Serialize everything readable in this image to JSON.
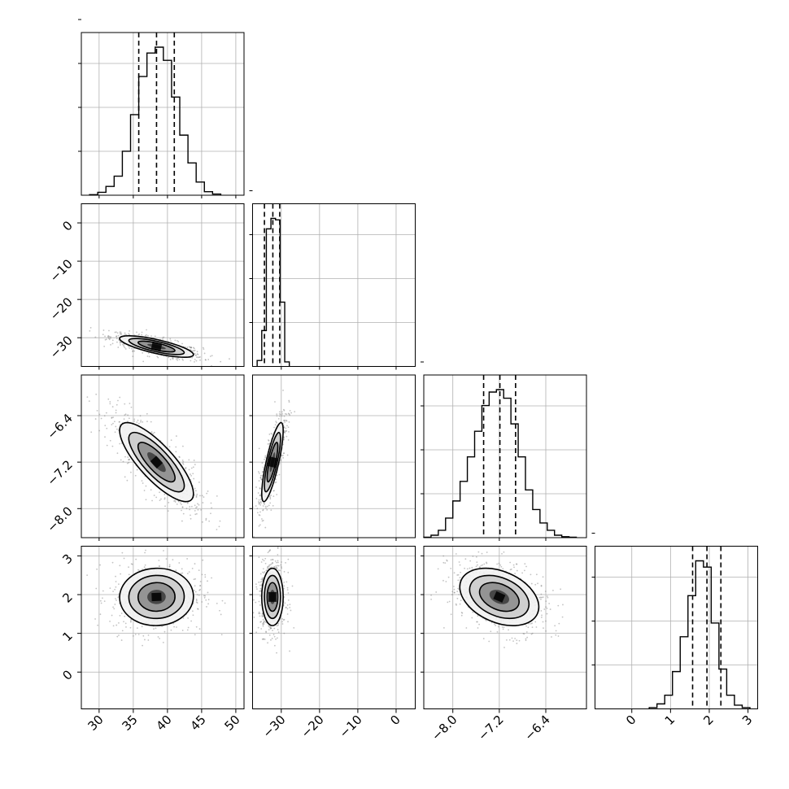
{
  "chart_data": {
    "type": "corner",
    "grid": true,
    "colors": {
      "line": "#000000",
      "grid": "#b0b0b0",
      "frame": "#000000",
      "background": "#ffffff",
      "points": "#7a7a7a"
    },
    "parameters": [
      {
        "range": [
          27.4,
          51.2
        ],
        "ticks": [
          "30",
          "35",
          "40",
          "45",
          "50"
        ],
        "tick_values": [
          30,
          35,
          40,
          45,
          50
        ]
      },
      {
        "range": [
          -37.5,
          5.0
        ],
        "ticks": [
          "−30",
          "−20",
          "−10",
          "0"
        ],
        "tick_values": [
          -30,
          -20,
          -10,
          0
        ]
      },
      {
        "range": [
          -8.5,
          -5.7
        ],
        "ticks": [
          "−8.0",
          "−7.2",
          "−6.4"
        ],
        "tick_values": [
          -8.0,
          -7.2,
          -6.4
        ]
      },
      {
        "range": [
          -0.95,
          3.25
        ],
        "ticks": [
          "0",
          "1",
          "2",
          "3"
        ],
        "tick_values": [
          0,
          1,
          2,
          3
        ]
      }
    ],
    "histograms": [
      {
        "parameter": 0,
        "bin_edges": [
          28.6,
          29.8,
          31.0,
          32.2,
          33.4,
          34.6,
          35.8,
          37.0,
          38.2,
          39.4,
          40.6,
          41.8,
          43.0,
          44.2,
          45.4,
          46.6,
          47.8
        ],
        "counts": [
          2,
          10,
          30,
          65,
          150,
          275,
          405,
          485,
          505,
          460,
          335,
          205,
          110,
          45,
          12,
          4
        ],
        "quantiles": [
          35.8,
          38.4,
          41.0
        ]
      },
      {
        "parameter": 1,
        "bin_edges": [
          -36.3,
          -35.1,
          -33.9,
          -32.7,
          -31.5,
          -30.3,
          -29.1,
          -27.9
        ],
        "counts": [
          20,
          120,
          460,
          495,
          490,
          215,
          15
        ],
        "quantiles": [
          -34.4,
          -32.2,
          -30.4
        ]
      },
      {
        "parameter": 2,
        "bin_edges": [
          -8.5,
          -8.375,
          -8.25,
          -8.125,
          -8.0,
          -7.875,
          -7.75,
          -7.625,
          -7.5,
          -7.375,
          -7.25,
          -7.125,
          -7.0,
          -6.875,
          -6.75,
          -6.625,
          -6.5,
          -6.375,
          -6.25,
          -6.125,
          -6.0,
          -5.875
        ],
        "counts": [
          2,
          10,
          30,
          80,
          150,
          230,
          330,
          435,
          540,
          595,
          605,
          570,
          465,
          330,
          195,
          115,
          60,
          30,
          10,
          4,
          2
        ],
        "quantiles": [
          -7.47,
          -7.19,
          -6.92
        ]
      },
      {
        "parameter": 3,
        "bin_edges": [
          0.45,
          0.65,
          0.85,
          1.05,
          1.25,
          1.45,
          1.65,
          1.85,
          2.05,
          2.25,
          2.45,
          2.65,
          2.85,
          3.05
        ],
        "counts": [
          5,
          20,
          55,
          150,
          290,
          455,
          595,
          570,
          345,
          160,
          55,
          15,
          5
        ],
        "quantiles": [
          1.57,
          1.94,
          2.3
        ]
      }
    ],
    "pair_densities": [
      {
        "x": 0,
        "y": 1,
        "mean": [
          38.4,
          -32.3
        ],
        "sd": [
          2.7,
          1.4
        ],
        "corr": -0.75
      },
      {
        "x": 0,
        "y": 2,
        "mean": [
          38.4,
          -7.2
        ],
        "sd": [
          2.7,
          0.34
        ],
        "corr": -0.8
      },
      {
        "x": 0,
        "y": 3,
        "mean": [
          38.4,
          1.94
        ],
        "sd": [
          2.7,
          0.37
        ],
        "corr": 0.02
      },
      {
        "x": 1,
        "y": 2,
        "mean": [
          -32.3,
          -7.2
        ],
        "sd": [
          1.4,
          0.34
        ],
        "corr": 0.8
      },
      {
        "x": 1,
        "y": 3,
        "mean": [
          -32.3,
          1.94
        ],
        "sd": [
          1.4,
          0.37
        ],
        "corr": 0.0
      },
      {
        "x": 2,
        "y": 3,
        "mean": [
          -7.2,
          1.94
        ],
        "sd": [
          0.34,
          0.37
        ],
        "corr": -0.35
      }
    ]
  }
}
